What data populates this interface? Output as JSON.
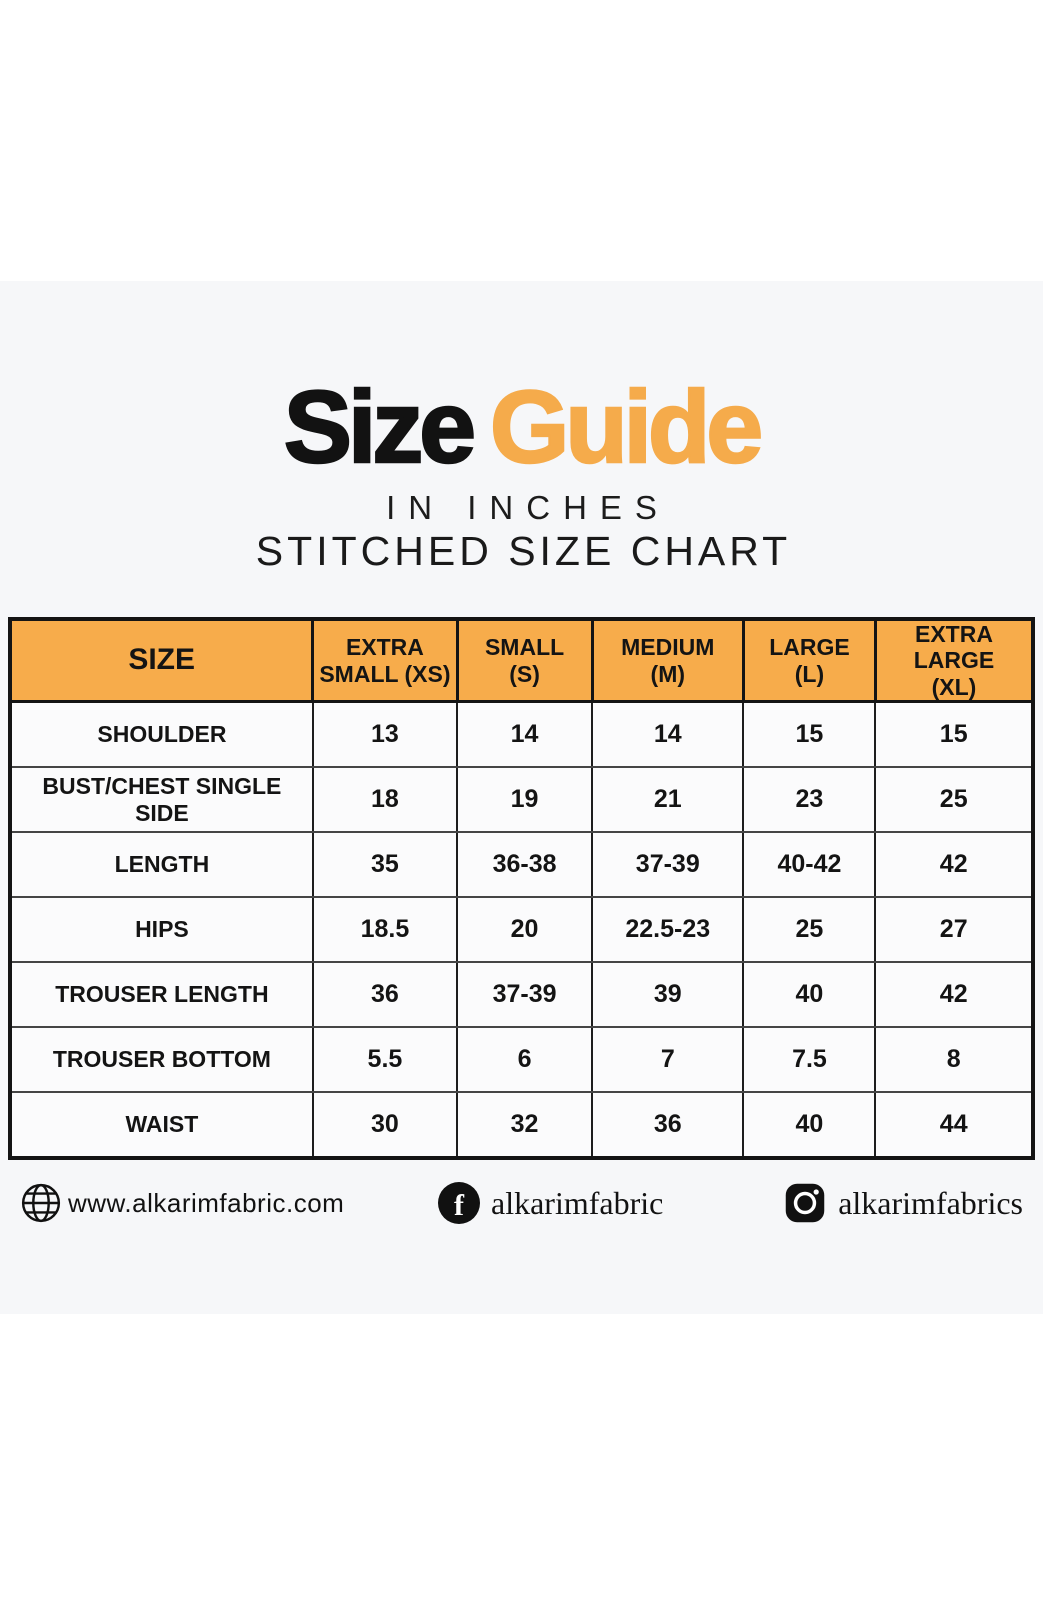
{
  "header": {
    "title_black": "Size",
    "title_orange": "Guide",
    "subtitle": "IN INCHES",
    "chart_label": "STITCHED SIZE CHART"
  },
  "colors": {
    "accent_orange_header": "#F7AC4B",
    "accent_orange_title": "#F5AB4B",
    "text_black": "#141414",
    "band_background": "#F6F7F9",
    "cell_background": "#FBFBFC"
  },
  "table": {
    "headers": [
      {
        "line1": "SIZE"
      },
      {
        "line1": "EXTRA",
        "line2": "SMALL (XS)"
      },
      {
        "line1": "SMALL",
        "line2": "(S)"
      },
      {
        "line1": "MEDIUM",
        "line2": "(M)"
      },
      {
        "line1": "LARGE",
        "line2": "(L)"
      },
      {
        "line1": "EXTRA LARGE",
        "line2": "(XL)"
      }
    ],
    "rows": [
      {
        "label": "SHOULDER",
        "values": [
          "13",
          "14",
          "14",
          "15",
          "15"
        ]
      },
      {
        "label": "BUST/CHEST SINGLE SIDE",
        "values": [
          "18",
          "19",
          "21",
          "23",
          "25"
        ]
      },
      {
        "label": "LENGTH",
        "values": [
          "35",
          "36-38",
          "37-39",
          "40-42",
          "42"
        ]
      },
      {
        "label": "HIPS",
        "values": [
          "18.5",
          "20",
          "22.5-23",
          "25",
          "27"
        ]
      },
      {
        "label": "TROUSER LENGTH",
        "values": [
          "36",
          "37-39",
          "39",
          "40",
          "42"
        ]
      },
      {
        "label": "TROUSER BOTTOM",
        "values": [
          "5.5",
          "6",
          "7",
          "7.5",
          "8"
        ]
      },
      {
        "label": "WAIST",
        "values": [
          "30",
          "32",
          "36",
          "40",
          "44"
        ]
      }
    ]
  },
  "footer": {
    "website": "www.alkarimfabric.com",
    "facebook_handle": "alkarimfabric",
    "instagram_handle": "alkarimfabrics"
  },
  "chart_data": {
    "type": "table",
    "title": "Size Guide - Stitched Size Chart (in inches)",
    "columns": [
      "SIZE",
      "EXTRA SMALL (XS)",
      "SMALL (S)",
      "MEDIUM (M)",
      "LARGE (L)",
      "EXTRA LARGE (XL)"
    ],
    "rows": [
      [
        "SHOULDER",
        "13",
        "14",
        "14",
        "15",
        "15"
      ],
      [
        "BUST/CHEST SINGLE SIDE",
        "18",
        "19",
        "21",
        "23",
        "25"
      ],
      [
        "LENGTH",
        "35",
        "36-38",
        "37-39",
        "40-42",
        "42"
      ],
      [
        "HIPS",
        "18.5",
        "20",
        "22.5-23",
        "25",
        "27"
      ],
      [
        "TROUSER LENGTH",
        "36",
        "37-39",
        "39",
        "40",
        "42"
      ],
      [
        "TROUSER BOTTOM",
        "5.5",
        "6",
        "7",
        "7.5",
        "8"
      ],
      [
        "WAIST",
        "30",
        "32",
        "36",
        "40",
        "44"
      ]
    ]
  }
}
